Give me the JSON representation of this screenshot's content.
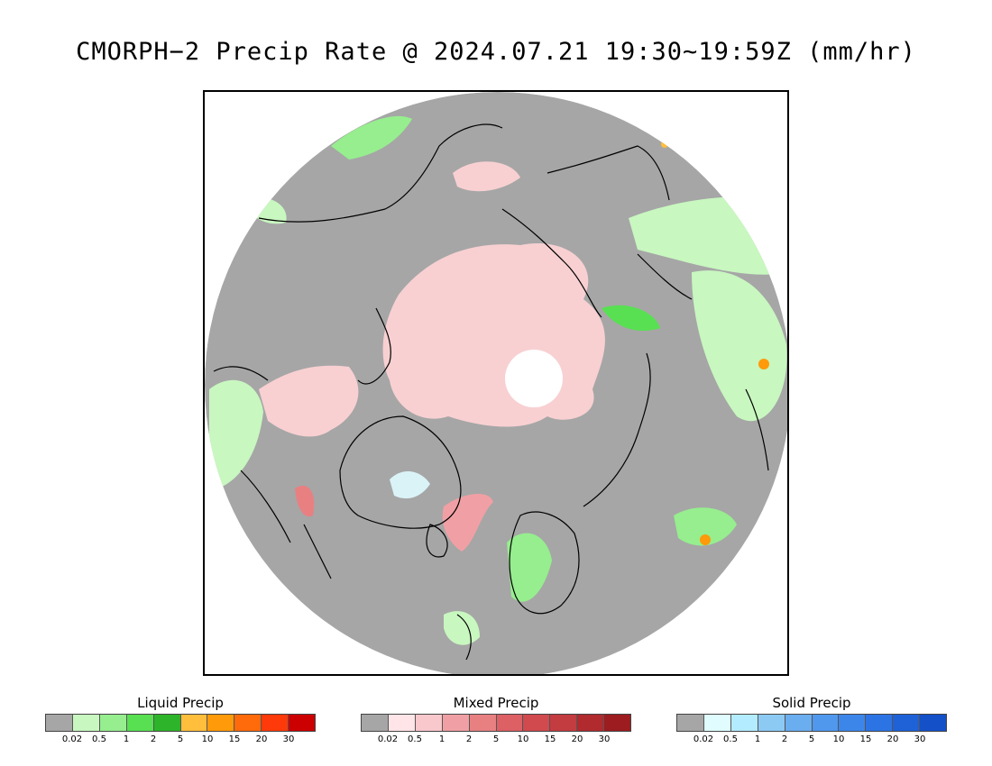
{
  "title": "CMORPH−2 Precip Rate @ 2024.07.21 19:30~19:59Z (mm/hr)",
  "legends": [
    {
      "title": "Liquid Precip",
      "colors": [
        "#a6a6a6",
        "#c8f7c0",
        "#96ee8e",
        "#58e052",
        "#2eb42a",
        "#ffbe3c",
        "#ff9a0a",
        "#ff6a0a",
        "#ff3a0a",
        "#cc0000"
      ],
      "ticks": [
        "0.02",
        "0.5",
        "1",
        "2",
        "5",
        "10",
        "15",
        "20",
        "30"
      ]
    },
    {
      "title": "Mixed Precip",
      "colors": [
        "#a6a6a6",
        "#ffe4e8",
        "#f8c8cc",
        "#f0a0a4",
        "#e88082",
        "#dc6064",
        "#d04a4e",
        "#c23c40",
        "#b02a2e",
        "#9c1c20"
      ],
      "ticks": [
        "0.02",
        "0.5",
        "1",
        "2",
        "5",
        "10",
        "15",
        "20",
        "30"
      ]
    },
    {
      "title": "Solid Precip",
      "colors": [
        "#a6a6a6",
        "#e0fcff",
        "#b4ecff",
        "#8ccaf4",
        "#6aaef0",
        "#4f98ee",
        "#3c86ea",
        "#2c74e4",
        "#1f62d8",
        "#1450c8"
      ],
      "ticks": [
        "0.02",
        "0.5",
        "1",
        "2",
        "5",
        "10",
        "15",
        "20",
        "30"
      ]
    }
  ],
  "map": {
    "background": "#a6a6a6",
    "pole_gap_color": "#ffffff",
    "coastline_color": "#000000"
  }
}
